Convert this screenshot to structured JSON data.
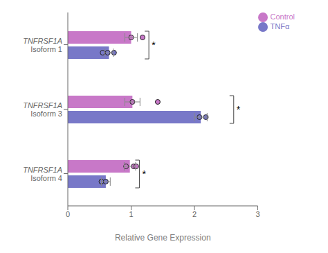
{
  "chart_data": {
    "type": "bar",
    "orientation": "horizontal",
    "xlabel": "Relative Gene Expression",
    "categories": [
      "TNFRSF1A\nIsoform 1",
      "TNFRSF1A\nIsoform 3",
      "TNFRSF1A\nIsoform 4"
    ],
    "series": [
      {
        "name": "Control",
        "color": "#C878C8",
        "values": [
          1.0,
          1.02,
          0.98
        ],
        "error_minus": [
          0.1,
          0.12,
          0.09
        ],
        "error_plus": [
          0.1,
          0.12,
          0.09
        ],
        "points": [
          [
            1.0,
            1.18
          ],
          [
            1.02,
            1.42
          ],
          [
            0.92,
            1.04,
            1.08
          ]
        ]
      },
      {
        "name": "TNFα",
        "color": "#7878C8",
        "values": [
          0.65,
          2.1,
          0.6
        ],
        "error_minus": [
          0.07,
          0.1,
          0.07
        ],
        "error_plus": [
          0.07,
          0.1,
          0.07
        ],
        "points": [
          [
            0.55,
            0.63,
            0.73
          ],
          [
            2.08,
            2.18
          ],
          [
            0.53,
            0.6
          ]
        ]
      }
    ],
    "annotations": [
      {
        "text": "*",
        "x": 1.28
      },
      {
        "text": "*",
        "x": 2.62
      },
      {
        "text": "*",
        "x": 1.13
      }
    ],
    "xlim": [
      0,
      3
    ],
    "xticks": [
      0,
      1,
      2,
      3
    ],
    "grid": false,
    "legend": "upper right"
  }
}
